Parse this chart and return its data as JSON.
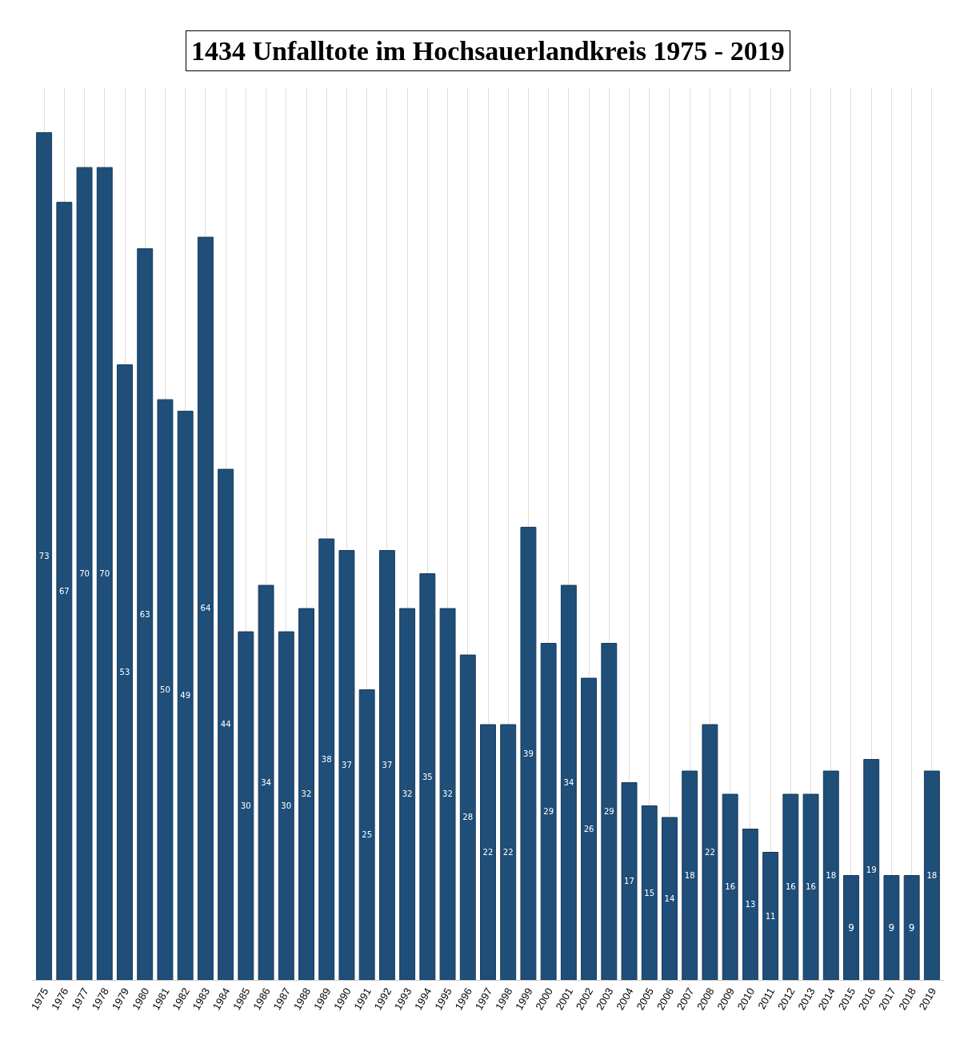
{
  "chart_data": {
    "type": "bar",
    "title": "1434 Unfalltote im Hochsauerlandkreis 1975 - 2019",
    "categories": [
      "1975",
      "1976",
      "1977",
      "1978",
      "1979",
      "1980",
      "1981",
      "1982",
      "1983",
      "1984",
      "1985",
      "1986",
      "1987",
      "1988",
      "1989",
      "1990",
      "1991",
      "1992",
      "1993",
      "1994",
      "1995",
      "1996",
      "1997",
      "1998",
      "1999",
      "2000",
      "2001",
      "2002",
      "2003",
      "2004",
      "2005",
      "2006",
      "2007",
      "2008",
      "2009",
      "2010",
      "2011",
      "2012",
      "2013",
      "2014",
      "2015",
      "2016",
      "2017",
      "2018",
      "2019"
    ],
    "values": [
      73,
      67,
      70,
      70,
      53,
      63,
      50,
      49,
      64,
      44,
      30,
      34,
      30,
      32,
      38,
      37,
      25,
      37,
      32,
      35,
      32,
      28,
      22,
      22,
      39,
      29,
      34,
      26,
      29,
      17,
      15,
      14,
      18,
      22,
      16,
      13,
      11,
      16,
      16,
      18,
      9,
      19,
      9,
      9,
      18
    ],
    "color": "#1f4e79",
    "data_labels": true,
    "grid": "x",
    "tick_labels": "x"
  }
}
